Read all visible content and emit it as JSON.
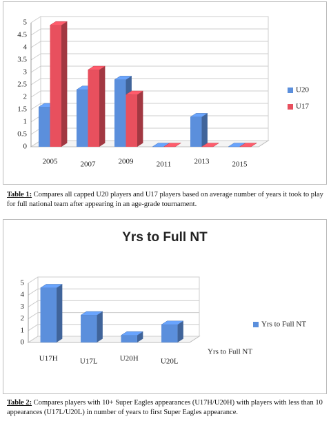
{
  "chart_data": [
    {
      "type": "bar3d",
      "categories": [
        "2005",
        "2007",
        "2009",
        "2011",
        "2013",
        "2015"
      ],
      "series": [
        {
          "name": "U20",
          "color": "#5b8fdc",
          "values": [
            1.6,
            2.3,
            2.7,
            0,
            1.2,
            0
          ]
        },
        {
          "name": "U17",
          "color": "#e8505e",
          "values": [
            4.9,
            3.1,
            2.1,
            0,
            0,
            0
          ]
        }
      ],
      "ylim": [
        0,
        5
      ],
      "yticks": [
        0,
        0.5,
        1,
        1.5,
        2,
        2.5,
        3,
        3.5,
        4,
        4.5,
        5
      ],
      "grid": true,
      "legend": "right",
      "caption_label": "Table 1:",
      "caption": "Compares all capped U20 players and U17 players based on average number of years it took to play for full national team after appearing in an age-grade tournament."
    },
    {
      "type": "bar3d",
      "title": "Yrs to Full NT",
      "categories": [
        "U17H",
        "U17L",
        "U20H",
        "U20L"
      ],
      "series": [
        {
          "name": "Yrs to Full NT",
          "color": "#5b8fdc",
          "values": [
            4.6,
            2.3,
            0.6,
            1.5
          ]
        }
      ],
      "ylim": [
        0,
        5
      ],
      "yticks": [
        0,
        1,
        2,
        3,
        4,
        5
      ],
      "grid": true,
      "legend": "right",
      "caption_label": "Table 2:",
      "caption": "Compares players with 10+ Super Eagles appearances (U17H/U20H) with players with less than 10 appearances (U17L/U20L) in number of years to first Super Eagles appearance."
    }
  ]
}
